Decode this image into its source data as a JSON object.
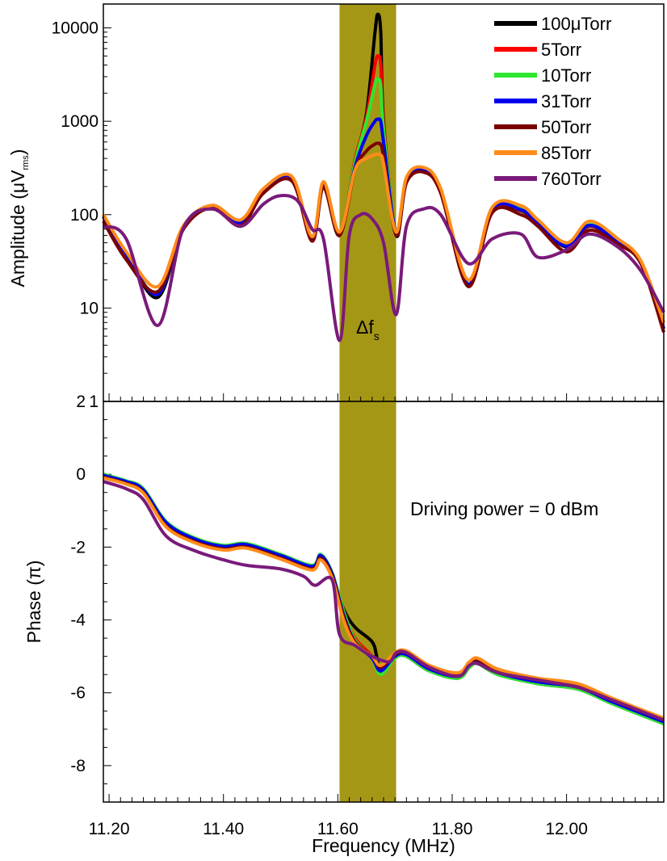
{
  "chart_data": [
    {
      "panel": "amplitude",
      "type": "line",
      "ylabel": "Amplitude (μV",
      "ylabel_sub": "rms",
      "ylabel_close": ")",
      "yscale": "log",
      "ylim": [
        1,
        18000
      ],
      "xlim": [
        11.19,
        12.17
      ],
      "yticks": [
        {
          "v": 10000,
          "label": "10000"
        },
        {
          "v": 1000,
          "label": "1000"
        },
        {
          "v": 100,
          "label": "100"
        },
        {
          "v": 10,
          "label": "10"
        },
        {
          "v": 1,
          "label": "1"
        }
      ],
      "band": {
        "from": 11.603,
        "to": 11.702,
        "color": "#a59716"
      },
      "band_label": "Δf",
      "band_label_sub": "s",
      "legend": [
        {
          "name": "100μTorr",
          "color": "#000000"
        },
        {
          "name": "5Torr",
          "color": "#ff0000"
        },
        {
          "name": "10Torr",
          "color": "#2ee62e"
        },
        {
          "name": "31Torr",
          "color": "#0000ee"
        },
        {
          "name": "50Torr",
          "color": "#7a0000"
        },
        {
          "name": "85Torr",
          "color": "#ff8c1a"
        },
        {
          "name": "760Torr",
          "color": "#7a1a7a"
        }
      ],
      "series": [
        {
          "name": "100μTorr",
          "color": "#000000",
          "x": [
            11.19,
            11.23,
            11.285,
            11.33,
            11.38,
            11.43,
            11.47,
            11.52,
            11.555,
            11.575,
            11.603,
            11.63,
            11.65,
            11.665,
            11.67,
            11.675,
            11.68,
            11.702,
            11.72,
            11.75,
            11.78,
            11.828,
            11.87,
            11.92,
            11.95,
            12.0,
            12.04,
            12.09,
            12.13,
            12.17
          ],
          "y": [
            95,
            38,
            13,
            70,
            120,
            80,
            180,
            245,
            55,
            200,
            60,
            380,
            1200,
            9000,
            14000,
            9000,
            1000,
            60,
            230,
            300,
            180,
            18,
            110,
            110,
            80,
            45,
            75,
            50,
            30,
            6
          ]
        },
        {
          "name": "5Torr",
          "color": "#ff0000",
          "x": [
            11.19,
            11.23,
            11.285,
            11.33,
            11.38,
            11.43,
            11.47,
            11.52,
            11.555,
            11.575,
            11.603,
            11.63,
            11.65,
            11.665,
            11.67,
            11.675,
            11.68,
            11.702,
            11.72,
            11.75,
            11.78,
            11.828,
            11.87,
            11.92,
            11.95,
            12.0,
            12.04,
            12.09,
            12.13,
            12.17
          ],
          "y": [
            95,
            38,
            14,
            72,
            122,
            82,
            182,
            246,
            56,
            205,
            62,
            380,
            1100,
            4000,
            5000,
            4000,
            900,
            62,
            232,
            300,
            182,
            18,
            112,
            112,
            80,
            46,
            76,
            51,
            30,
            6
          ]
        },
        {
          "name": "10Torr",
          "color": "#2ee62e",
          "x": [
            11.19,
            11.23,
            11.285,
            11.33,
            11.38,
            11.43,
            11.47,
            11.52,
            11.555,
            11.575,
            11.603,
            11.63,
            11.65,
            11.665,
            11.67,
            11.675,
            11.68,
            11.702,
            11.72,
            11.75,
            11.78,
            11.828,
            11.87,
            11.92,
            11.95,
            12.0,
            12.04,
            12.09,
            12.13,
            12.17
          ],
          "y": [
            96,
            39,
            14,
            74,
            124,
            84,
            186,
            250,
            57,
            215,
            63,
            360,
            1000,
            2500,
            2800,
            2400,
            800,
            62,
            240,
            310,
            185,
            18,
            114,
            115,
            82,
            47,
            78,
            52,
            31,
            6
          ]
        },
        {
          "name": "31Torr",
          "color": "#0000ee",
          "x": [
            11.19,
            11.23,
            11.285,
            11.33,
            11.38,
            11.43,
            11.47,
            11.52,
            11.555,
            11.575,
            11.603,
            11.63,
            11.65,
            11.665,
            11.67,
            11.675,
            11.68,
            11.702,
            11.72,
            11.75,
            11.78,
            11.828,
            11.87,
            11.92,
            11.95,
            12.0,
            12.04,
            12.09,
            12.13,
            12.17
          ],
          "y": [
            96,
            38,
            14,
            73,
            123,
            83,
            184,
            248,
            56,
            210,
            62,
            320,
            700,
            1000,
            1050,
            1000,
            600,
            62,
            236,
            305,
            183,
            18,
            113,
            113,
            81,
            46,
            77,
            51,
            30,
            6
          ]
        },
        {
          "name": "50Torr",
          "color": "#7a0000",
          "x": [
            11.19,
            11.23,
            11.285,
            11.33,
            11.38,
            11.43,
            11.47,
            11.52,
            11.555,
            11.575,
            11.603,
            11.63,
            11.65,
            11.665,
            11.67,
            11.675,
            11.68,
            11.702,
            11.72,
            11.75,
            11.78,
            11.828,
            11.87,
            11.92,
            11.95,
            12.0,
            12.04,
            12.09,
            12.13,
            12.17
          ],
          "y": [
            85,
            33,
            15,
            70,
            118,
            76,
            170,
            228,
            52,
            195,
            60,
            300,
            480,
            570,
            580,
            560,
            420,
            60,
            220,
            285,
            170,
            17,
            105,
            100,
            75,
            40,
            68,
            48,
            30,
            5.5
          ]
        },
        {
          "name": "85Torr",
          "color": "#ff8c1a",
          "x": [
            11.19,
            11.23,
            11.285,
            11.33,
            11.38,
            11.43,
            11.47,
            11.52,
            11.555,
            11.575,
            11.603,
            11.63,
            11.65,
            11.665,
            11.67,
            11.675,
            11.68,
            11.702,
            11.72,
            11.75,
            11.78,
            11.828,
            11.87,
            11.92,
            11.95,
            12.0,
            12.04,
            12.09,
            12.13,
            12.17
          ],
          "y": [
            100,
            40,
            17,
            76,
            126,
            88,
            190,
            255,
            58,
            225,
            65,
            300,
            400,
            440,
            445,
            430,
            350,
            65,
            250,
            320,
            190,
            20,
            120,
            125,
            88,
            50,
            85,
            55,
            32,
            7
          ]
        },
        {
          "name": "760Torr",
          "color": "#7a1a7a",
          "x": [
            11.19,
            11.23,
            11.285,
            11.33,
            11.38,
            11.43,
            11.47,
            11.5,
            11.53,
            11.555,
            11.575,
            11.603,
            11.62,
            11.64,
            11.66,
            11.68,
            11.702,
            11.72,
            11.75,
            11.78,
            11.828,
            11.87,
            11.92,
            11.95,
            12.0,
            12.04,
            12.09,
            12.13,
            12.17
          ],
          "y": [
            75,
            55,
            6.5,
            72,
            115,
            75,
            130,
            160,
            140,
            70,
            55,
            4.5,
            60,
            100,
            90,
            50,
            8.5,
            75,
            115,
            100,
            30,
            55,
            62,
            35,
            42,
            62,
            45,
            25,
            9
          ]
        }
      ]
    },
    {
      "panel": "phase",
      "type": "line",
      "ylabel": "Phase (π)",
      "xlabel": "Frequency (MHz)",
      "ylim": [
        -9,
        2
      ],
      "xlim": [
        11.19,
        12.17
      ],
      "yticks": [
        {
          "v": 2,
          "label": "2"
        },
        {
          "v": 0,
          "label": "0"
        },
        {
          "v": -2,
          "label": "-2"
        },
        {
          "v": -4,
          "label": "-4"
        },
        {
          "v": -6,
          "label": "-6"
        },
        {
          "v": -8,
          "label": "-8"
        }
      ],
      "xticks": [
        {
          "v": 11.2,
          "label": "11.20"
        },
        {
          "v": 11.4,
          "label": "11.40"
        },
        {
          "v": 11.6,
          "label": "11.60"
        },
        {
          "v": 11.8,
          "label": "11.80"
        },
        {
          "v": 12.0,
          "label": "12.00"
        }
      ],
      "annotation": "Driving power = 0 dBm",
      "series": [
        {
          "name": "100μTorr",
          "color": "#000000",
          "x": [
            11.19,
            11.23,
            11.26,
            11.3,
            11.35,
            11.4,
            11.44,
            11.5,
            11.555,
            11.57,
            11.59,
            11.61,
            11.63,
            11.66,
            11.668,
            11.675,
            11.7,
            11.72,
            11.76,
            11.81,
            11.83,
            11.845,
            11.88,
            11.95,
            12.02,
            12.08,
            12.17
          ],
          "y": [
            -0.05,
            -0.25,
            -0.5,
            -1.4,
            -1.85,
            -2.05,
            -2.0,
            -2.3,
            -2.6,
            -2.3,
            -2.8,
            -3.7,
            -4.2,
            -4.6,
            -5.0,
            -5.4,
            -5.0,
            -5.0,
            -5.4,
            -5.6,
            -5.3,
            -5.2,
            -5.5,
            -5.75,
            -5.9,
            -6.3,
            -6.85
          ]
        },
        {
          "name": "5Torr",
          "color": "#ff0000",
          "x": [
            11.19,
            11.23,
            11.26,
            11.3,
            11.35,
            11.4,
            11.44,
            11.5,
            11.555,
            11.57,
            11.59,
            11.61,
            11.63,
            11.66,
            11.675,
            11.7,
            11.72,
            11.76,
            11.81,
            11.83,
            11.845,
            11.88,
            11.95,
            12.02,
            12.08,
            12.17
          ],
          "y": [
            -0.05,
            -0.22,
            -0.45,
            -1.35,
            -1.8,
            -2.0,
            -1.95,
            -2.25,
            -2.55,
            -2.25,
            -2.75,
            -3.8,
            -4.5,
            -5.0,
            -5.45,
            -5.0,
            -4.95,
            -5.35,
            -5.55,
            -5.25,
            -5.15,
            -5.45,
            -5.7,
            -5.85,
            -6.25,
            -6.8
          ]
        },
        {
          "name": "10Torr",
          "color": "#2ee62e",
          "x": [
            11.19,
            11.23,
            11.26,
            11.3,
            11.35,
            11.4,
            11.44,
            11.5,
            11.555,
            11.57,
            11.59,
            11.61,
            11.63,
            11.66,
            11.675,
            11.7,
            11.72,
            11.76,
            11.81,
            11.83,
            11.845,
            11.88,
            11.95,
            12.02,
            12.08,
            12.17
          ],
          "y": [
            0.0,
            -0.18,
            -0.4,
            -1.3,
            -1.75,
            -1.95,
            -1.9,
            -2.2,
            -2.5,
            -2.2,
            -2.7,
            -3.75,
            -4.55,
            -5.05,
            -5.5,
            -5.05,
            -5.0,
            -5.4,
            -5.6,
            -5.3,
            -5.2,
            -5.5,
            -5.75,
            -5.9,
            -6.3,
            -6.85
          ]
        },
        {
          "name": "31Torr",
          "color": "#0000ee",
          "x": [
            11.19,
            11.23,
            11.26,
            11.3,
            11.35,
            11.4,
            11.44,
            11.5,
            11.555,
            11.57,
            11.59,
            11.61,
            11.63,
            11.66,
            11.675,
            11.7,
            11.72,
            11.76,
            11.81,
            11.83,
            11.845,
            11.88,
            11.95,
            12.02,
            12.08,
            12.17
          ],
          "y": [
            -0.03,
            -0.2,
            -0.43,
            -1.33,
            -1.78,
            -1.98,
            -1.93,
            -2.23,
            -2.53,
            -2.23,
            -2.73,
            -3.85,
            -4.6,
            -5.05,
            -5.4,
            -5.0,
            -4.95,
            -5.35,
            -5.55,
            -5.25,
            -5.15,
            -5.45,
            -5.7,
            -5.85,
            -6.25,
            -6.8
          ]
        },
        {
          "name": "50Torr",
          "color": "#7a0000",
          "x": [
            11.19,
            11.23,
            11.26,
            11.3,
            11.35,
            11.4,
            11.44,
            11.5,
            11.555,
            11.57,
            11.59,
            11.61,
            11.63,
            11.66,
            11.675,
            11.7,
            11.72,
            11.76,
            11.81,
            11.83,
            11.845,
            11.88,
            11.95,
            12.02,
            12.08,
            12.17
          ],
          "y": [
            -0.08,
            -0.25,
            -0.5,
            -1.42,
            -1.85,
            -2.05,
            -2.0,
            -2.3,
            -2.6,
            -2.3,
            -2.8,
            -3.9,
            -4.6,
            -5.0,
            -5.3,
            -4.95,
            -4.9,
            -5.3,
            -5.5,
            -5.2,
            -5.1,
            -5.4,
            -5.65,
            -5.8,
            -6.2,
            -6.75
          ]
        },
        {
          "name": "85Torr",
          "color": "#ff8c1a",
          "x": [
            11.19,
            11.23,
            11.26,
            11.3,
            11.35,
            11.4,
            11.44,
            11.5,
            11.555,
            11.57,
            11.59,
            11.61,
            11.63,
            11.66,
            11.675,
            11.7,
            11.72,
            11.76,
            11.81,
            11.83,
            11.845,
            11.88,
            11.95,
            12.02,
            12.08,
            12.17
          ],
          "y": [
            -0.1,
            -0.27,
            -0.52,
            -1.45,
            -1.88,
            -2.08,
            -2.03,
            -2.33,
            -2.63,
            -2.35,
            -2.85,
            -4.0,
            -4.65,
            -5.0,
            -5.25,
            -4.9,
            -4.85,
            -5.25,
            -5.45,
            -5.15,
            -5.05,
            -5.35,
            -5.6,
            -5.75,
            -6.15,
            -6.7
          ]
        },
        {
          "name": "760Torr",
          "color": "#7a1a7a",
          "x": [
            11.19,
            11.23,
            11.26,
            11.3,
            11.35,
            11.4,
            11.44,
            11.5,
            11.54,
            11.56,
            11.59,
            11.603,
            11.63,
            11.66,
            11.69,
            11.702,
            11.72,
            11.76,
            11.81,
            11.83,
            11.845,
            11.88,
            11.95,
            12.02,
            12.08,
            12.17
          ],
          "y": [
            -0.2,
            -0.4,
            -0.7,
            -1.7,
            -2.1,
            -2.35,
            -2.5,
            -2.6,
            -2.8,
            -3.05,
            -2.9,
            -4.4,
            -4.7,
            -5.0,
            -5.15,
            -4.9,
            -4.9,
            -5.3,
            -5.55,
            -5.25,
            -5.2,
            -5.45,
            -5.65,
            -5.85,
            -6.2,
            -6.75
          ]
        }
      ]
    }
  ]
}
